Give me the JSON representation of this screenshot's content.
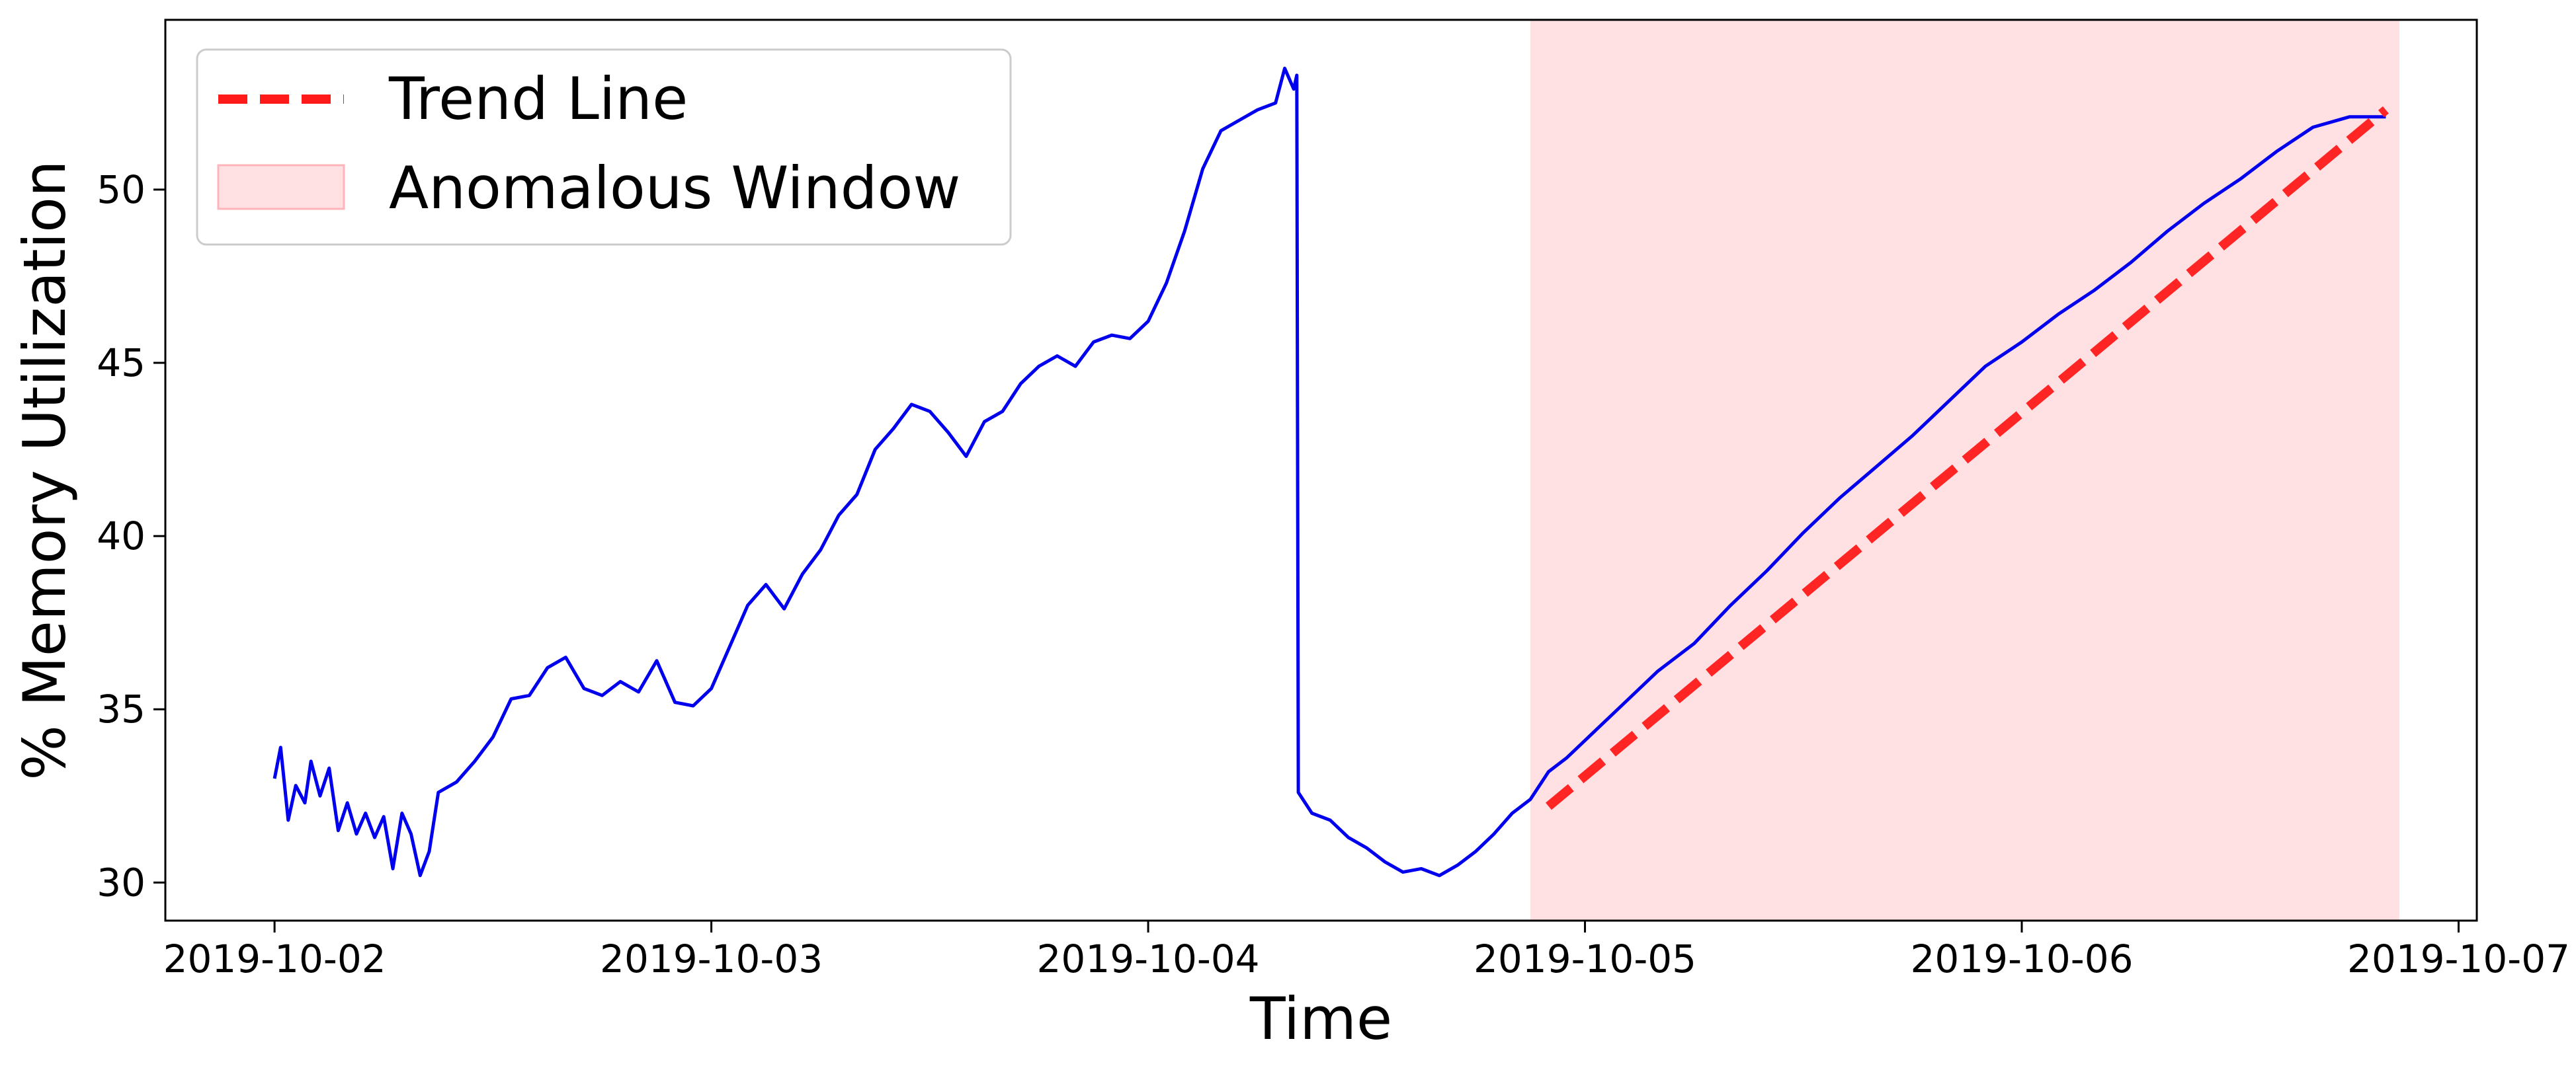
{
  "chart_data": {
    "type": "line",
    "xlabel": "Time",
    "ylabel": "% Memory Utilization",
    "xlim": [
      "2019-10-01T18:00",
      "2019-10-07T01:00"
    ],
    "ylim": [
      28.9,
      54.9
    ],
    "x_ticks": [
      "2019-10-02",
      "2019-10-03",
      "2019-10-04",
      "2019-10-05",
      "2019-10-06",
      "2019-10-07"
    ],
    "y_ticks": [
      30,
      35,
      40,
      45,
      50
    ],
    "grid": false,
    "legend": {
      "placement": "top-left",
      "entries": [
        "Trend Line",
        "Anomalous Window"
      ]
    },
    "series": [
      {
        "color": "#0000ee",
        "style": "solid",
        "points": [
          [
            "2019-10-02T00:00",
            33.0
          ],
          [
            "2019-10-02T00:20",
            33.9
          ],
          [
            "2019-10-02T00:45",
            31.8
          ],
          [
            "2019-10-02T01:10",
            32.8
          ],
          [
            "2019-10-02T01:40",
            32.3
          ],
          [
            "2019-10-02T02:00",
            33.5
          ],
          [
            "2019-10-02T02:30",
            32.5
          ],
          [
            "2019-10-02T03:00",
            33.3
          ],
          [
            "2019-10-02T03:30",
            31.5
          ],
          [
            "2019-10-02T04:00",
            32.3
          ],
          [
            "2019-10-02T04:30",
            31.4
          ],
          [
            "2019-10-02T05:00",
            32.0
          ],
          [
            "2019-10-02T05:30",
            31.3
          ],
          [
            "2019-10-02T06:00",
            31.9
          ],
          [
            "2019-10-02T06:30",
            30.4
          ],
          [
            "2019-10-02T07:00",
            32.0
          ],
          [
            "2019-10-02T07:30",
            31.4
          ],
          [
            "2019-10-02T08:00",
            30.2
          ],
          [
            "2019-10-02T08:30",
            30.9
          ],
          [
            "2019-10-02T09:00",
            32.6
          ],
          [
            "2019-10-02T10:00",
            32.9
          ],
          [
            "2019-10-02T11:00",
            33.5
          ],
          [
            "2019-10-02T12:00",
            34.2
          ],
          [
            "2019-10-02T13:00",
            35.3
          ],
          [
            "2019-10-02T14:00",
            35.4
          ],
          [
            "2019-10-02T15:00",
            36.2
          ],
          [
            "2019-10-02T16:00",
            36.5
          ],
          [
            "2019-10-02T17:00",
            35.6
          ],
          [
            "2019-10-02T18:00",
            35.4
          ],
          [
            "2019-10-02T19:00",
            35.8
          ],
          [
            "2019-10-02T20:00",
            35.5
          ],
          [
            "2019-10-02T21:00",
            36.4
          ],
          [
            "2019-10-02T22:00",
            35.2
          ],
          [
            "2019-10-02T23:00",
            35.1
          ],
          [
            "2019-10-03T00:00",
            35.6
          ],
          [
            "2019-10-03T01:00",
            36.8
          ],
          [
            "2019-10-03T02:00",
            38.0
          ],
          [
            "2019-10-03T03:00",
            38.6
          ],
          [
            "2019-10-03T04:00",
            37.9
          ],
          [
            "2019-10-03T05:00",
            38.9
          ],
          [
            "2019-10-03T06:00",
            39.6
          ],
          [
            "2019-10-03T07:00",
            40.6
          ],
          [
            "2019-10-03T08:00",
            41.2
          ],
          [
            "2019-10-03T09:00",
            42.5
          ],
          [
            "2019-10-03T10:00",
            43.1
          ],
          [
            "2019-10-03T11:00",
            43.8
          ],
          [
            "2019-10-03T12:00",
            43.6
          ],
          [
            "2019-10-03T13:00",
            43.0
          ],
          [
            "2019-10-03T14:00",
            42.3
          ],
          [
            "2019-10-03T15:00",
            43.3
          ],
          [
            "2019-10-03T16:00",
            43.6
          ],
          [
            "2019-10-03T17:00",
            44.4
          ],
          [
            "2019-10-03T18:00",
            44.9
          ],
          [
            "2019-10-03T19:00",
            45.2
          ],
          [
            "2019-10-03T20:00",
            44.9
          ],
          [
            "2019-10-03T21:00",
            45.6
          ],
          [
            "2019-10-03T22:00",
            45.8
          ],
          [
            "2019-10-03T23:00",
            45.7
          ],
          [
            "2019-10-04T00:00",
            46.2
          ],
          [
            "2019-10-04T01:00",
            47.3
          ],
          [
            "2019-10-04T02:00",
            48.8
          ],
          [
            "2019-10-04T03:00",
            50.6
          ],
          [
            "2019-10-04T04:00",
            51.7
          ],
          [
            "2019-10-04T05:00",
            52.0
          ],
          [
            "2019-10-04T06:00",
            52.3
          ],
          [
            "2019-10-04T07:00",
            52.5
          ],
          [
            "2019-10-04T07:30",
            53.5
          ],
          [
            "2019-10-04T08:00",
            52.9
          ],
          [
            "2019-10-04T08:10",
            53.3
          ],
          [
            "2019-10-04T08:15",
            32.6
          ],
          [
            "2019-10-04T09:00",
            32.0
          ],
          [
            "2019-10-04T10:00",
            31.8
          ],
          [
            "2019-10-04T11:00",
            31.3
          ],
          [
            "2019-10-04T12:00",
            31.0
          ],
          [
            "2019-10-04T13:00",
            30.6
          ],
          [
            "2019-10-04T14:00",
            30.3
          ],
          [
            "2019-10-04T15:00",
            30.4
          ],
          [
            "2019-10-04T16:00",
            30.2
          ],
          [
            "2019-10-04T17:00",
            30.5
          ],
          [
            "2019-10-04T18:00",
            30.9
          ],
          [
            "2019-10-04T19:00",
            31.4
          ],
          [
            "2019-10-04T20:00",
            32.0
          ],
          [
            "2019-10-04T21:00",
            32.4
          ],
          [
            "2019-10-04T22:00",
            33.2
          ],
          [
            "2019-10-04T23:00",
            33.6
          ],
          [
            "2019-10-05T00:00",
            34.1
          ],
          [
            "2019-10-05T02:00",
            35.1
          ],
          [
            "2019-10-05T04:00",
            36.1
          ],
          [
            "2019-10-05T06:00",
            36.9
          ],
          [
            "2019-10-05T08:00",
            38.0
          ],
          [
            "2019-10-05T10:00",
            39.0
          ],
          [
            "2019-10-05T12:00",
            40.1
          ],
          [
            "2019-10-05T14:00",
            41.1
          ],
          [
            "2019-10-05T16:00",
            42.0
          ],
          [
            "2019-10-05T18:00",
            42.9
          ],
          [
            "2019-10-05T20:00",
            43.9
          ],
          [
            "2019-10-05T22:00",
            44.9
          ],
          [
            "2019-10-06T00:00",
            45.6
          ],
          [
            "2019-10-06T02:00",
            46.4
          ],
          [
            "2019-10-06T04:00",
            47.1
          ],
          [
            "2019-10-06T06:00",
            47.9
          ],
          [
            "2019-10-06T08:00",
            48.8
          ],
          [
            "2019-10-06T10:00",
            49.6
          ],
          [
            "2019-10-06T12:00",
            50.3
          ],
          [
            "2019-10-06T14:00",
            51.1
          ],
          [
            "2019-10-06T16:00",
            51.8
          ],
          [
            "2019-10-06T18:00",
            52.1
          ],
          [
            "2019-10-06T20:00",
            52.1
          ]
        ]
      },
      {
        "name": "Trend Line",
        "color": "#ff1a1a",
        "style": "dashed",
        "points": [
          [
            "2019-10-04T22:00",
            32.2
          ],
          [
            "2019-10-06T20:00",
            52.3
          ]
        ]
      }
    ],
    "shaded_regions": [
      {
        "name": "Anomalous Window",
        "color": "#ffb3ba",
        "opacity": 0.4,
        "x_range": [
          "2019-10-04T21:00",
          "2019-10-06T20:45"
        ]
      }
    ]
  }
}
